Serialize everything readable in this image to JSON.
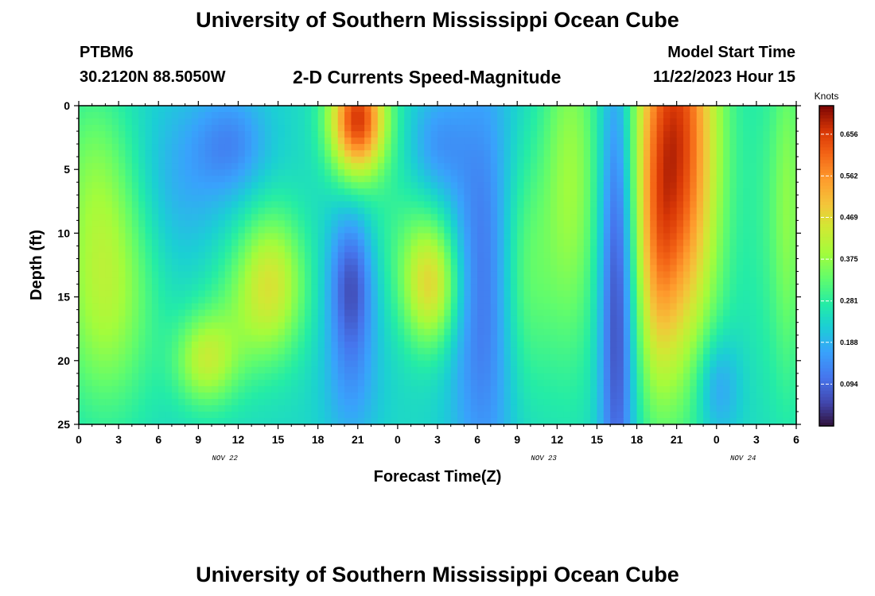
{
  "header": {
    "title": "University of Southern Mississippi Ocean Cube",
    "station": "PTBM6",
    "coords": "30.2120N  88.5050W",
    "subtitle": "2-D Currents Speed-Magnitude",
    "model_start_label": "Model Start Time",
    "model_start_value": "11/22/2023 Hour 15"
  },
  "footer": {
    "title": "University of Southern Mississippi Ocean Cube"
  },
  "chart_data": {
    "type": "heatmap",
    "xlabel": "Forecast Time(Z)",
    "ylabel": "Depth (ft)",
    "x_tick_labels": [
      "0",
      "3",
      "6",
      "9",
      "12",
      "15",
      "18",
      "21",
      "0",
      "3",
      "6",
      "9",
      "12",
      "15",
      "18",
      "21",
      "0",
      "3",
      "6"
    ],
    "date_labels": [
      {
        "text": "NOV 22",
        "hour": 11
      },
      {
        "text": "NOV 23",
        "hour": 35
      },
      {
        "text": "NOV 24",
        "hour": 50
      }
    ],
    "x_range_hours": [
      0,
      54
    ],
    "y_ticks": [
      0,
      5,
      10,
      15,
      20,
      25
    ],
    "y_range": [
      0,
      25
    ],
    "colorbar": {
      "unit": "Knots",
      "range": [
        0.0,
        0.72
      ],
      "tick_values": [
        0.656,
        0.562,
        0.469,
        0.375,
        0.281,
        0.188,
        0.094
      ],
      "tick_labels": [
        "0.656",
        "0.562",
        "0.469",
        "0.375",
        "0.281",
        "0.188",
        "0.094"
      ]
    },
    "blobs": [
      {
        "t": 2,
        "d": 14,
        "st": 2.5,
        "sd": 7,
        "a": 0.17
      },
      {
        "t": 1,
        "d": 4,
        "st": 2,
        "sd": 5,
        "a": 0.06
      },
      {
        "t": 14.5,
        "d": 14,
        "st": 1.8,
        "sd": 4,
        "a": 0.2
      },
      {
        "t": 9.5,
        "d": 20,
        "st": 1.6,
        "sd": 2.5,
        "a": 0.16
      },
      {
        "t": 11.5,
        "d": 17,
        "st": 2,
        "sd": 4,
        "a": 0.06
      },
      {
        "t": 11.5,
        "d": 3,
        "st": 2,
        "sd": 3,
        "a": -0.1
      },
      {
        "t": 7.5,
        "d": 6,
        "st": 2.5,
        "sd": 5,
        "a": -0.06
      },
      {
        "t": 21,
        "d": 1,
        "st": 1.5,
        "sd": 3.2,
        "a": 0.42
      },
      {
        "t": 20.5,
        "d": 14,
        "st": 1.2,
        "sd": 4,
        "a": -0.17
      },
      {
        "t": 20.5,
        "d": 22,
        "st": 1.5,
        "sd": 4,
        "a": -0.07
      },
      {
        "t": 26.5,
        "d": 14,
        "st": 1.5,
        "sd": 3.5,
        "a": 0.23
      },
      {
        "t": 27,
        "d": 3,
        "st": 1.5,
        "sd": 3,
        "a": -0.08
      },
      {
        "t": 30.5,
        "d": 14,
        "st": 1.8,
        "sd": 12,
        "a": -0.14
      },
      {
        "t": 24,
        "d": 10,
        "st": 1.8,
        "sd": 4,
        "a": 0.04
      },
      {
        "t": 33.5,
        "d": 13,
        "st": 1.5,
        "sd": 7,
        "a": 0.1
      },
      {
        "t": 37,
        "d": 6,
        "st": 1.5,
        "sd": 10,
        "a": 0.14
      },
      {
        "t": 40.5,
        "d": 15,
        "st": 0.9,
        "sd": 14,
        "a": -0.2
      },
      {
        "t": 45,
        "d": 3,
        "st": 2.2,
        "sd": 12,
        "a": 0.42
      },
      {
        "t": 43.5,
        "d": 12,
        "st": 1,
        "sd": 8,
        "a": 0.1
      },
      {
        "t": 48,
        "d": 22,
        "st": 1.2,
        "sd": 3,
        "a": -0.1
      },
      {
        "t": 52.5,
        "d": 8,
        "st": 1.5,
        "sd": 10,
        "a": 0.06
      },
      {
        "t": 53.5,
        "d": 8,
        "st": 0.8,
        "sd": 10,
        "a": 0.08
      }
    ]
  }
}
